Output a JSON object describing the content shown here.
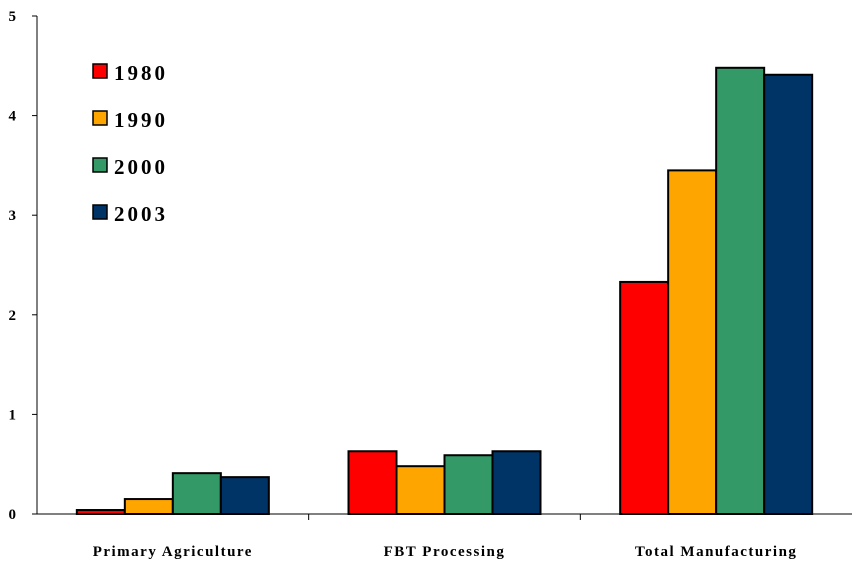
{
  "chart_data": {
    "type": "bar",
    "categories": [
      "Primary Agriculture",
      "FBT Processing",
      "Total Manufacturing"
    ],
    "series": [
      {
        "name": "1980",
        "values": [
          0.04,
          0.63,
          2.33
        ],
        "color": "#ff0000"
      },
      {
        "name": "1990",
        "values": [
          0.15,
          0.48,
          3.45
        ],
        "color": "#ffa500"
      },
      {
        "name": "2000",
        "values": [
          0.41,
          0.59,
          4.48
        ],
        "color": "#339966"
      },
      {
        "name": "2003",
        "values": [
          0.37,
          0.63,
          4.41
        ],
        "color": "#003366"
      }
    ],
    "yticks": [
      "0",
      "1",
      "2",
      "3",
      "4",
      "5"
    ],
    "ylim": [
      0,
      5
    ],
    "grid": false,
    "legend_position": "top-left"
  }
}
